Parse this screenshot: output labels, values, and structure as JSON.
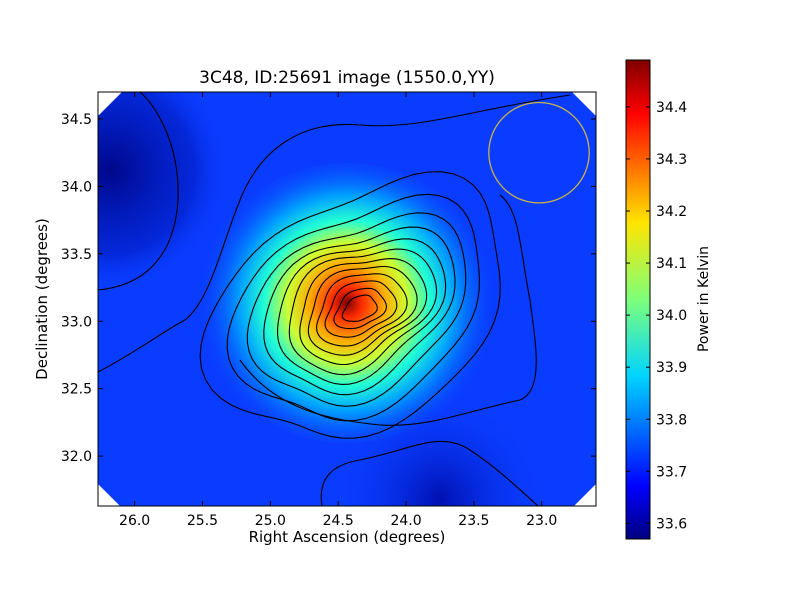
{
  "chart_data": {
    "type": "heatmap",
    "title": "3C48, ID:25691 image (1550.0,YY)",
    "xlabel": "Right Ascension (degrees)",
    "ylabel": "Declination (degrees)",
    "xlim": [
      26.27,
      22.6
    ],
    "ylim": [
      31.63,
      34.7
    ],
    "x_ticks": [
      26.0,
      25.5,
      25.0,
      24.5,
      24.0,
      23.5,
      23.0
    ],
    "x_tick_labels": [
      "26.0",
      "25.5",
      "25.0",
      "24.5",
      "24.0",
      "23.5",
      "23.0"
    ],
    "y_ticks": [
      32.0,
      32.5,
      33.0,
      33.5,
      34.0,
      34.5
    ],
    "y_tick_labels": [
      "32.0",
      "32.5",
      "33.0",
      "33.5",
      "34.0",
      "34.5"
    ],
    "colorbar": {
      "label": "Power in Kelvin",
      "range": [
        33.57,
        34.49
      ],
      "ticks": [
        33.6,
        33.7,
        33.8,
        33.9,
        34.0,
        34.1,
        34.2,
        34.3,
        34.4
      ],
      "tick_labels": [
        "33.6",
        "33.7",
        "33.8",
        "33.9",
        "34.0",
        "34.1",
        "34.2",
        "34.3",
        "34.4"
      ],
      "colormap": "jet"
    },
    "peak": {
      "ra": 24.4,
      "dec": 33.13,
      "value": 34.49
    },
    "background_value": 33.68,
    "contours": "black, 15 levels",
    "beam_circle": {
      "ra": 23.02,
      "dec": 34.25,
      "radius_deg": 0.37,
      "color": "#c8b24a"
    },
    "grid": false
  }
}
